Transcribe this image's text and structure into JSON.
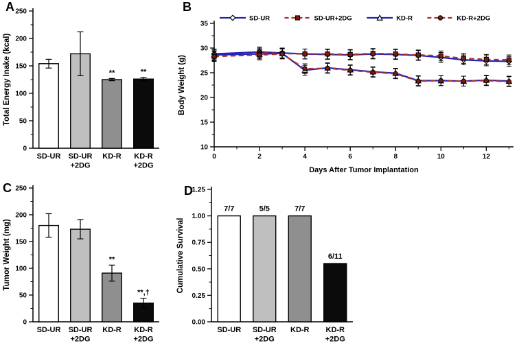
{
  "figure": {
    "background": "#ffffff",
    "panels": [
      {
        "letter": "A"
      },
      {
        "letter": "B"
      },
      {
        "letter": "C"
      },
      {
        "letter": "D"
      }
    ]
  },
  "colors": {
    "axis": "#000000",
    "blue_line": "#2323bb",
    "red_dashed_line": "#b03028",
    "dark_red_marker_fill": "#7a1a10",
    "bar_white": "#ffffff",
    "bar_light_gray": "#bfbfbf",
    "bar_gray": "#8f8f8f",
    "bar_black": "#0b0b0b"
  },
  "chart_data": [
    {
      "panel": "A",
      "type": "bar",
      "ylabel": "Total Energy Inake (kcal)",
      "ylim": [
        0,
        250
      ],
      "yticks": [
        0,
        50,
        100,
        150,
        200,
        250
      ],
      "yticklabels": [
        "0",
        "50",
        "100",
        "150",
        "200",
        "250"
      ],
      "categories": [
        [
          "SD-UR"
        ],
        [
          "SD-UR",
          "+2DG"
        ],
        [
          "KD-R"
        ],
        [
          "KD-R",
          "+2DG"
        ]
      ],
      "values": [
        154,
        172,
        125,
        126
      ],
      "errors": [
        8,
        40,
        2,
        3
      ],
      "annotations": [
        "",
        "",
        "**",
        "**"
      ],
      "bar_colors": [
        "#ffffff",
        "#bfbfbf",
        "#8f8f8f",
        "#0b0b0b"
      ],
      "grid": false,
      "layout": {
        "ml": 48,
        "mt": 16,
        "mr": 8,
        "mb": 42,
        "ylabel_x": 13,
        "bar_frac": 0.62
      }
    },
    {
      "panel": "B",
      "type": "line",
      "ylabel": "Body Weight (g)",
      "xlabel": "Days After Tumor Implantation",
      "ylim": [
        10,
        35
      ],
      "yticks": [
        10,
        15,
        20,
        25,
        30,
        35
      ],
      "yticklabels": [
        "10",
        "15",
        "20",
        "25",
        "30",
        "35"
      ],
      "xlim": [
        0,
        13.2
      ],
      "xticks_major": [
        0,
        2,
        4,
        6,
        8,
        10,
        12
      ],
      "xticklabels": [
        "0",
        "2",
        "4",
        "6",
        "8",
        "10",
        "12"
      ],
      "xticks_minor": [
        1,
        3,
        5,
        7,
        9,
        11,
        13
      ],
      "x": [
        0,
        2,
        3,
        4,
        5,
        6,
        7,
        8,
        9,
        10,
        11,
        12,
        13
      ],
      "grid": false,
      "legend_position": "top-inside",
      "series": [
        {
          "name": "SD-UR",
          "color": "#2323bb",
          "style": "solid",
          "marker": "diamond-open",
          "values": [
            28.8,
            29.2,
            29.0,
            28.8,
            28.7,
            28.6,
            28.8,
            28.7,
            28.5,
            28.1,
            27.6,
            27.4,
            27.3
          ],
          "error": 1.0
        },
        {
          "name": "SD-UR+2DG",
          "color": "#b03028",
          "style": "dashed",
          "marker": "square-filled",
          "values": [
            28.4,
            29.0,
            28.9,
            28.8,
            28.8,
            28.7,
            28.9,
            28.8,
            28.6,
            28.4,
            27.9,
            27.7,
            27.6
          ],
          "error": 1.0
        },
        {
          "name": "KD-R",
          "color": "#2323bb",
          "style": "solid",
          "marker": "triangle-open",
          "values": [
            28.6,
            28.8,
            28.9,
            25.5,
            26.0,
            25.6,
            25.2,
            24.9,
            23.4,
            23.4,
            23.3,
            23.5,
            23.3
          ],
          "error": 1.0
        },
        {
          "name": "KD-R+2DG",
          "color": "#b03028",
          "style": "dashed",
          "marker": "circle-filled",
          "values": [
            28.3,
            28.6,
            28.8,
            25.8,
            25.9,
            25.5,
            25.1,
            24.8,
            23.3,
            23.4,
            23.3,
            23.4,
            23.2
          ],
          "error": 1.0
        }
      ],
      "marker_fill": "#7a1a10",
      "layout": {
        "ml": 60,
        "mt": 34,
        "mr": 8,
        "mb": 44,
        "ylabel_x": 16,
        "legend_y": 26,
        "legend_x0": 8,
        "legend_gap": 15,
        "legend_sample": 38
      }
    },
    {
      "panel": "C",
      "type": "bar",
      "ylabel": "Tumor Weight (mg)",
      "ylim": [
        0,
        250
      ],
      "yticks": [
        0,
        50,
        100,
        150,
        200,
        250
      ],
      "yticklabels": [
        "0",
        "50",
        "100",
        "150",
        "200",
        "250"
      ],
      "categories": [
        [
          "SD-UR"
        ],
        [
          "SD-UR",
          "+2DG"
        ],
        [
          "KD-R"
        ],
        [
          "KD-R",
          "+2DG"
        ]
      ],
      "values": [
        180,
        173,
        91,
        35
      ],
      "errors": [
        22,
        18,
        15,
        9
      ],
      "annotations": [
        "",
        "",
        "**",
        "**,†"
      ],
      "bar_colors": [
        "#ffffff",
        "#bfbfbf",
        "#8f8f8f",
        "#0b0b0b"
      ],
      "grid": false,
      "layout": {
        "ml": 48,
        "mt": 14,
        "mr": 8,
        "mb": 44,
        "ylabel_x": 13,
        "bar_frac": 0.62
      }
    },
    {
      "panel": "D",
      "type": "bar",
      "ylabel": "Cumulative Survival",
      "ylim": [
        0,
        1.25
      ],
      "yticks": [
        0,
        0.25,
        0.5,
        0.75,
        1.0,
        1.25
      ],
      "yticklabels": [
        "0.00",
        "0.25",
        "0.50",
        "0.75",
        "1.00",
        "1.25"
      ],
      "categories": [
        [
          "SD-UR"
        ],
        [
          "SD-UR",
          "+2DG"
        ],
        [
          "KD-R"
        ],
        [
          "KD-R",
          "+2DG"
        ]
      ],
      "values": [
        1.0,
        1.0,
        1.0,
        0.55
      ],
      "value_labels": [
        "7/7",
        "5/5",
        "7/7",
        "6/11"
      ],
      "annotations": [
        "",
        "",
        "",
        ""
      ],
      "bar_colors": [
        "#ffffff",
        "#bfbfbf",
        "#8f8f8f",
        "#0b0b0b"
      ],
      "grid": false,
      "layout": {
        "ml": 56,
        "mt": 16,
        "mr": 14,
        "mb": 44,
        "ylabel_x": 14,
        "bar_frac": 0.64
      }
    }
  ]
}
